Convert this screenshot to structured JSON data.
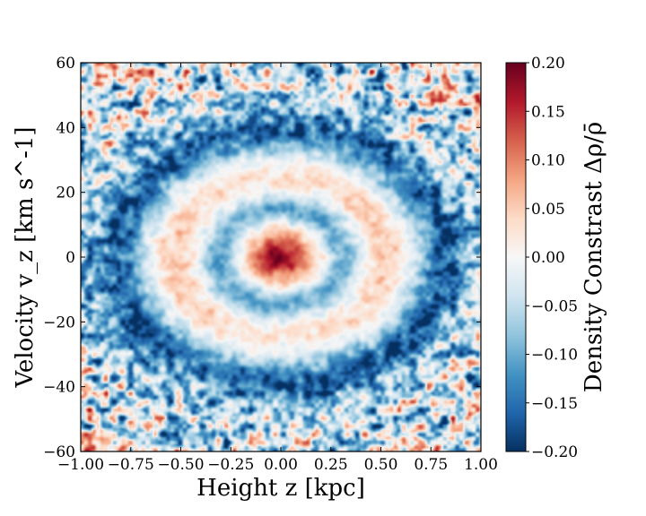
{
  "chart_data": {
    "type": "heatmap",
    "title": "",
    "xlabel": "Height z [kpc]",
    "ylabel": "Velocity v_z [km s^-1]",
    "colorbar_label": "Density Constrast Δρ/ρ̄",
    "xlim": [
      -1.0,
      1.0
    ],
    "ylim": [
      -60,
      60
    ],
    "clim": [
      -0.2,
      0.2
    ],
    "colormap": "RdBu_r",
    "x_ticks": [
      -1.0,
      -0.75,
      -0.5,
      -0.25,
      0.0,
      0.25,
      0.5,
      0.75,
      1.0
    ],
    "x_tick_labels": [
      "−1.00",
      "−0.75",
      "−0.50",
      "−0.25",
      "0.00",
      "0.25",
      "0.50",
      "0.75",
      "1.00"
    ],
    "y_ticks": [
      -60,
      -40,
      -20,
      0,
      20,
      40,
      60
    ],
    "y_tick_labels": [
      "−60",
      "−40",
      "−20",
      "0",
      "20",
      "40",
      "60"
    ],
    "colorbar_ticks": [
      -0.2,
      -0.15,
      -0.1,
      -0.05,
      0.0,
      0.05,
      0.1,
      0.15,
      0.2
    ],
    "colorbar_tick_labels": [
      "−0.20",
      "−0.15",
      "−0.10",
      "−0.05",
      "0.00",
      "0.05",
      "0.10",
      "0.15",
      "0.20"
    ],
    "structure": {
      "central_peak": {
        "z": 0.0,
        "vz": 0,
        "value": 0.18
      },
      "inner_trough_ring": {
        "value": -0.1
      },
      "overdense_ring": {
        "value": 0.05
      },
      "outer_trough_ring": {
        "value": -0.15
      },
      "edge_noise": {
        "value_range": [
          -0.2,
          0.2
        ]
      }
    }
  }
}
